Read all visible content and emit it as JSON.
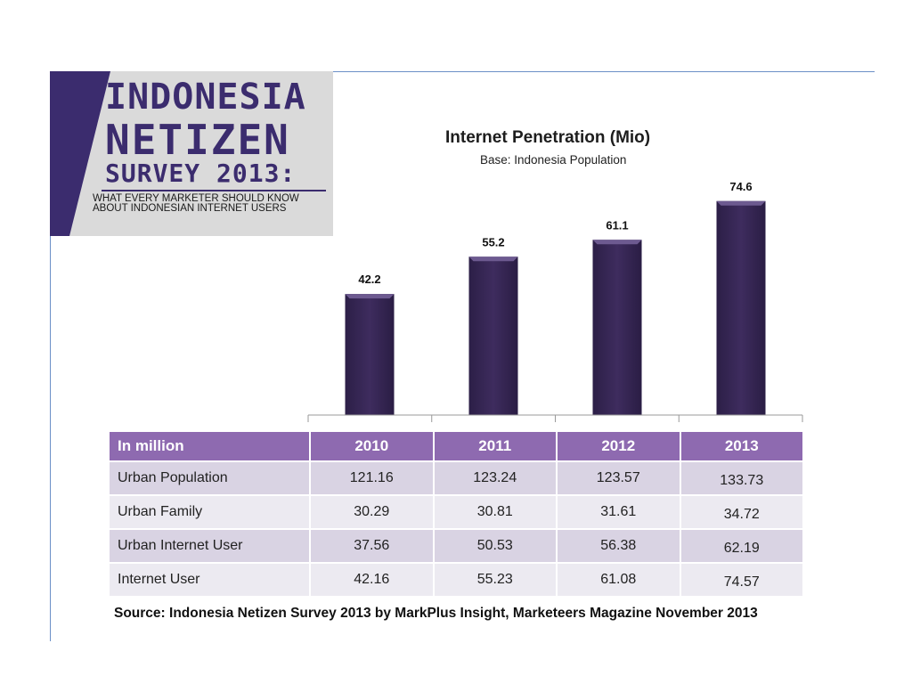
{
  "banner": {
    "line1": "INDONESIA",
    "line2": "NETIZEN",
    "line3": "SURVEY 2013:",
    "subtitle": "WHAT EVERY MARKETER SHOULD KNOW ABOUT INDONESIAN INTERNET USERS"
  },
  "colors": {
    "bar": "#3e2c5e",
    "header": "#8e6ab0",
    "banner": "#3b2c6e"
  },
  "chart_data": {
    "type": "bar",
    "title": "Internet Penetration (Mio)",
    "subtitle": "Base: Indonesia Population",
    "categories": [
      "2010",
      "2011",
      "2012",
      "2013"
    ],
    "values": [
      42.2,
      55.2,
      61.1,
      74.6
    ],
    "data_labels": [
      "42.2",
      "55.2",
      "61.1",
      "74.6"
    ],
    "ylim": [
      0,
      80
    ],
    "grid": false,
    "legend": "none"
  },
  "table": {
    "header": [
      "In million",
      "2010",
      "2011",
      "2012",
      "2013"
    ],
    "rows": [
      {
        "label": "Urban Population",
        "values": [
          "121.16",
          "123.24",
          "123.57",
          "133.73"
        ]
      },
      {
        "label": "Urban Family",
        "values": [
          "30.29",
          "30.81",
          "31.61",
          "34.72"
        ]
      },
      {
        "label": "Urban Internet User",
        "values": [
          "37.56",
          "50.53",
          "56.38",
          "62.19"
        ]
      },
      {
        "label": "Internet User",
        "values": [
          "42.16",
          "55.23",
          "61.08",
          "74.57"
        ]
      }
    ]
  },
  "source": "Source: Indonesia Netizen Survey 2013 by MarkPlus Insight, Marketeers Magazine November 2013"
}
